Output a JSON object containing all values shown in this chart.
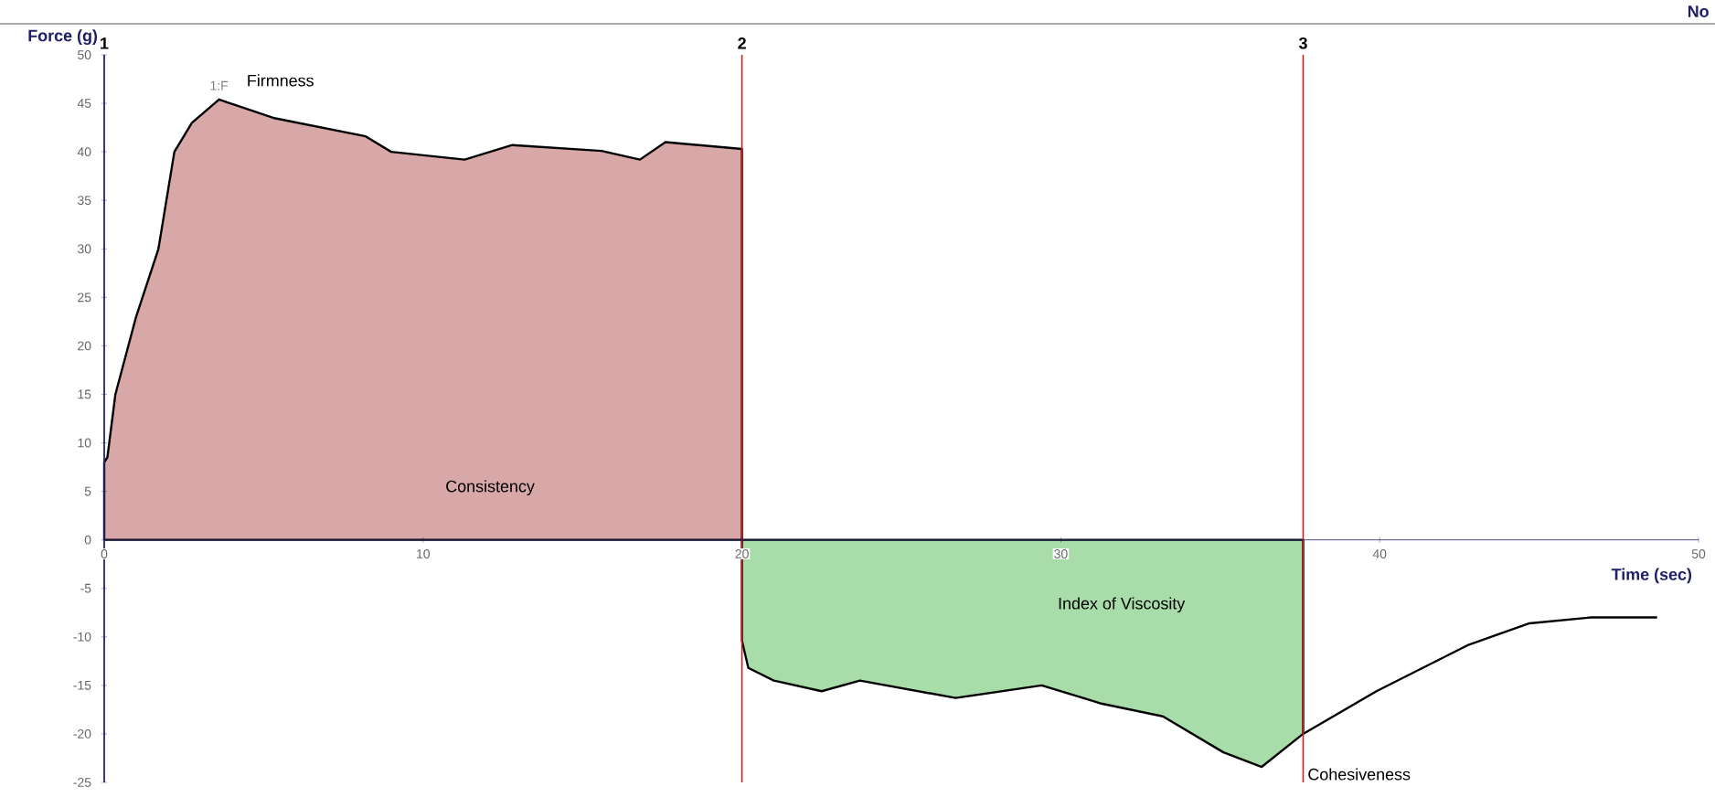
{
  "chart_data": {
    "type": "area",
    "xlabel": "Time (sec)",
    "ylabel": "Force (g)",
    "xlim": [
      0,
      50
    ],
    "ylim": [
      -25,
      50
    ],
    "xticks": [
      0,
      10,
      20,
      30,
      40,
      50
    ],
    "yticks": [
      -25,
      -20,
      -15,
      -10,
      -5,
      0,
      5,
      10,
      15,
      20,
      25,
      30,
      35,
      40,
      45,
      50
    ],
    "series": [
      {
        "color": "#d8a8a8",
        "x": [
          0,
          0.1,
          0.35,
          1.0,
          1.7,
          2.2,
          2.75,
          3.6,
          5.3,
          8.2,
          9.0,
          11.3,
          12.8,
          15.6,
          16.8,
          17.6,
          20.0
        ],
        "values": [
          8,
          8.5,
          15,
          23,
          30,
          40,
          43,
          45.4,
          43.5,
          41.6,
          40,
          39.2,
          40.7,
          40.1,
          39.2,
          41,
          40.3
        ]
      },
      {
        "color": "#a8dca8",
        "x": [
          20.0,
          20.2,
          21.0,
          22.5,
          23.7,
          26.7,
          29.4,
          31.3,
          33.2,
          35.1,
          36.3,
          37.6
        ],
        "values": [
          -10.4,
          -13.2,
          -14.5,
          -15.6,
          -14.5,
          -16.3,
          -15,
          -16.9,
          -18.2,
          -21.9,
          -23.4,
          -20
        ]
      },
      {
        "type": "line",
        "color": "#000000",
        "x": [
          37.6,
          39.9,
          42.8,
          44.7,
          46.6,
          48.7
        ],
        "values": [
          -20,
          -15.6,
          -10.8,
          -8.6,
          -8,
          -8
        ]
      }
    ],
    "ref_lines": [
      {
        "axis": "x",
        "value": 0,
        "color": "#20206a"
      },
      {
        "axis": "x",
        "value": 20,
        "color": "#cc2222"
      },
      {
        "axis": "x",
        "value": 37.6,
        "color": "#cc2222"
      }
    ],
    "annotations": [
      {
        "text": "1",
        "x": 0,
        "y": 50
      },
      {
        "text": "2",
        "x": 20,
        "y": 50
      },
      {
        "text": "3",
        "x": 37.6,
        "y": 50
      },
      {
        "text": "1:F",
        "x": 3.6,
        "y": 45.4
      },
      {
        "text": "Firmness",
        "x": 3.6,
        "y": 45.4
      },
      "Consistency",
      "Index of Viscosity",
      {
        "text": "Cohesiveness",
        "x": 36.3,
        "y": -23.4
      },
      "No"
    ],
    "grid": false,
    "marker": "none",
    "line_style": "solid"
  }
}
